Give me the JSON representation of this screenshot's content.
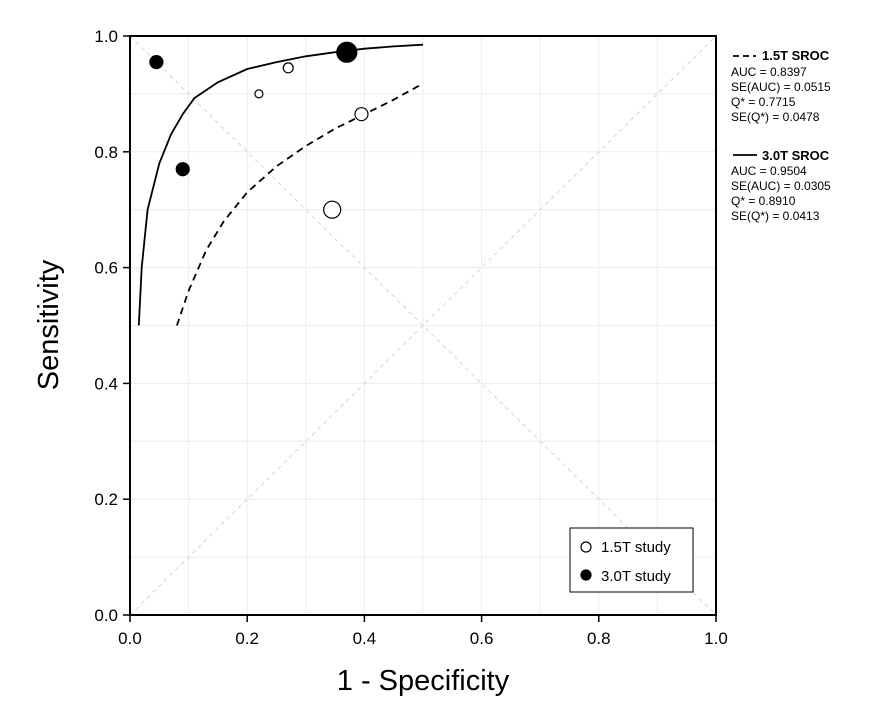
{
  "chart_data": {
    "type": "scatter",
    "title": "",
    "xlabel": "1 - Specificity",
    "ylabel": "Sensitivity",
    "xlim": [
      0,
      1
    ],
    "ylim": [
      0,
      1
    ],
    "x_ticks": [
      "0.0",
      "0.2",
      "0.4",
      "0.6",
      "0.8",
      "1.0"
    ],
    "y_ticks": [
      "0.0",
      "0.2",
      "0.4",
      "0.6",
      "0.8",
      "1.0"
    ],
    "grid": true,
    "reference_lines": [
      "chance diagonal",
      "Q* anti-diagonal"
    ],
    "series": [
      {
        "name": "1.5T study",
        "marker": "open-circle",
        "points": [
          {
            "x": 0.22,
            "y": 0.9,
            "weight": 0.8
          },
          {
            "x": 0.27,
            "y": 0.945,
            "weight": 1.0
          },
          {
            "x": 0.395,
            "y": 0.865,
            "weight": 1.3
          },
          {
            "x": 0.345,
            "y": 0.7,
            "weight": 1.7
          }
        ]
      },
      {
        "name": "3.0T study",
        "marker": "filled-circle",
        "points": [
          {
            "x": 0.045,
            "y": 0.955,
            "weight": 1.3
          },
          {
            "x": 0.09,
            "y": 0.77,
            "weight": 1.3
          },
          {
            "x": 0.37,
            "y": 0.972,
            "weight": 2.0
          }
        ]
      }
    ],
    "curves": [
      {
        "name": "1.5T SROC",
        "style": "dashed",
        "points": [
          [
            0.08,
            0.5
          ],
          [
            0.1,
            0.56
          ],
          [
            0.13,
            0.63
          ],
          [
            0.16,
            0.68
          ],
          [
            0.2,
            0.73
          ],
          [
            0.25,
            0.775
          ],
          [
            0.3,
            0.81
          ],
          [
            0.35,
            0.84
          ],
          [
            0.4,
            0.865
          ],
          [
            0.45,
            0.89
          ],
          [
            0.5,
            0.918
          ]
        ]
      },
      {
        "name": "3.0T SROC",
        "style": "solid",
        "points": [
          [
            0.015,
            0.5
          ],
          [
            0.02,
            0.6
          ],
          [
            0.03,
            0.7
          ],
          [
            0.05,
            0.78
          ],
          [
            0.07,
            0.83
          ],
          [
            0.09,
            0.865
          ],
          [
            0.11,
            0.893
          ],
          [
            0.15,
            0.92
          ],
          [
            0.2,
            0.943
          ],
          [
            0.25,
            0.955
          ],
          [
            0.3,
            0.965
          ],
          [
            0.35,
            0.972
          ],
          [
            0.4,
            0.978
          ],
          [
            0.45,
            0.982
          ],
          [
            0.5,
            0.985
          ]
        ]
      }
    ],
    "stats": [
      {
        "heading": "1.5T SROC",
        "line_style": "dashed",
        "lines": [
          "AUC = 0.8397",
          "SE(AUC) = 0.0515",
          "Q* = 0.7715",
          "SE(Q*) = 0.0478"
        ]
      },
      {
        "heading": "3.0T SROC",
        "line_style": "solid",
        "lines": [
          "AUC = 0.9504",
          "SE(AUC) = 0.0305",
          "Q* = 0.8910",
          "SE(Q*) = 0.0413"
        ]
      }
    ],
    "legend": {
      "position": "bottom-right",
      "entries": [
        {
          "label": "1.5T study",
          "marker": "open-circle"
        },
        {
          "label": "3.0T study",
          "marker": "filled-circle"
        }
      ]
    },
    "colors": {
      "ink": "#000000",
      "grid": "#ececec",
      "reference": "#d4d4d4",
      "background": "#ffffff"
    }
  }
}
